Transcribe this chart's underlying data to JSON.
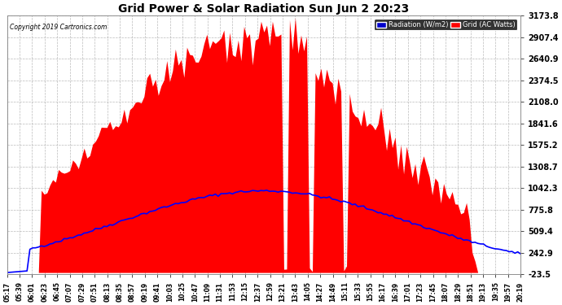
{
  "title": "Grid Power & Solar Radiation Sun Jun 2 20:23",
  "copyright": "Copyright 2019 Cartronics.com",
  "legend_radiation": "Radiation (W/m2)",
  "legend_grid": "Grid (AC Watts)",
  "yticks": [
    -23.5,
    242.9,
    509.4,
    775.8,
    1042.3,
    1308.7,
    1575.2,
    1841.6,
    2108.0,
    2374.5,
    2640.9,
    2907.4,
    3173.8
  ],
  "ymin": -23.5,
  "ymax": 3173.8,
  "bg_color": "#ffffff",
  "plot_bg_color": "#ffffff",
  "grid_color": "#aaaaaa",
  "radiation_color": "#0000ff",
  "grid_ac_color": "#ff0000",
  "title_color": "#000000",
  "tick_color": "#000000",
  "n_points": 181,
  "xtick_labels": [
    "05:17",
    "05:39",
    "06:01",
    "06:23",
    "06:45",
    "07:07",
    "07:29",
    "07:51",
    "08:13",
    "08:35",
    "08:57",
    "09:19",
    "09:41",
    "10:03",
    "10:25",
    "10:47",
    "11:09",
    "11:31",
    "11:53",
    "12:15",
    "12:37",
    "12:59",
    "13:21",
    "13:43",
    "14:05",
    "14:27",
    "14:49",
    "15:11",
    "15:33",
    "15:55",
    "16:17",
    "16:39",
    "17:01",
    "17:23",
    "17:45",
    "18:07",
    "18:29",
    "18:51",
    "19:13",
    "19:35",
    "19:57",
    "20:19"
  ],
  "xtick_step": 1
}
